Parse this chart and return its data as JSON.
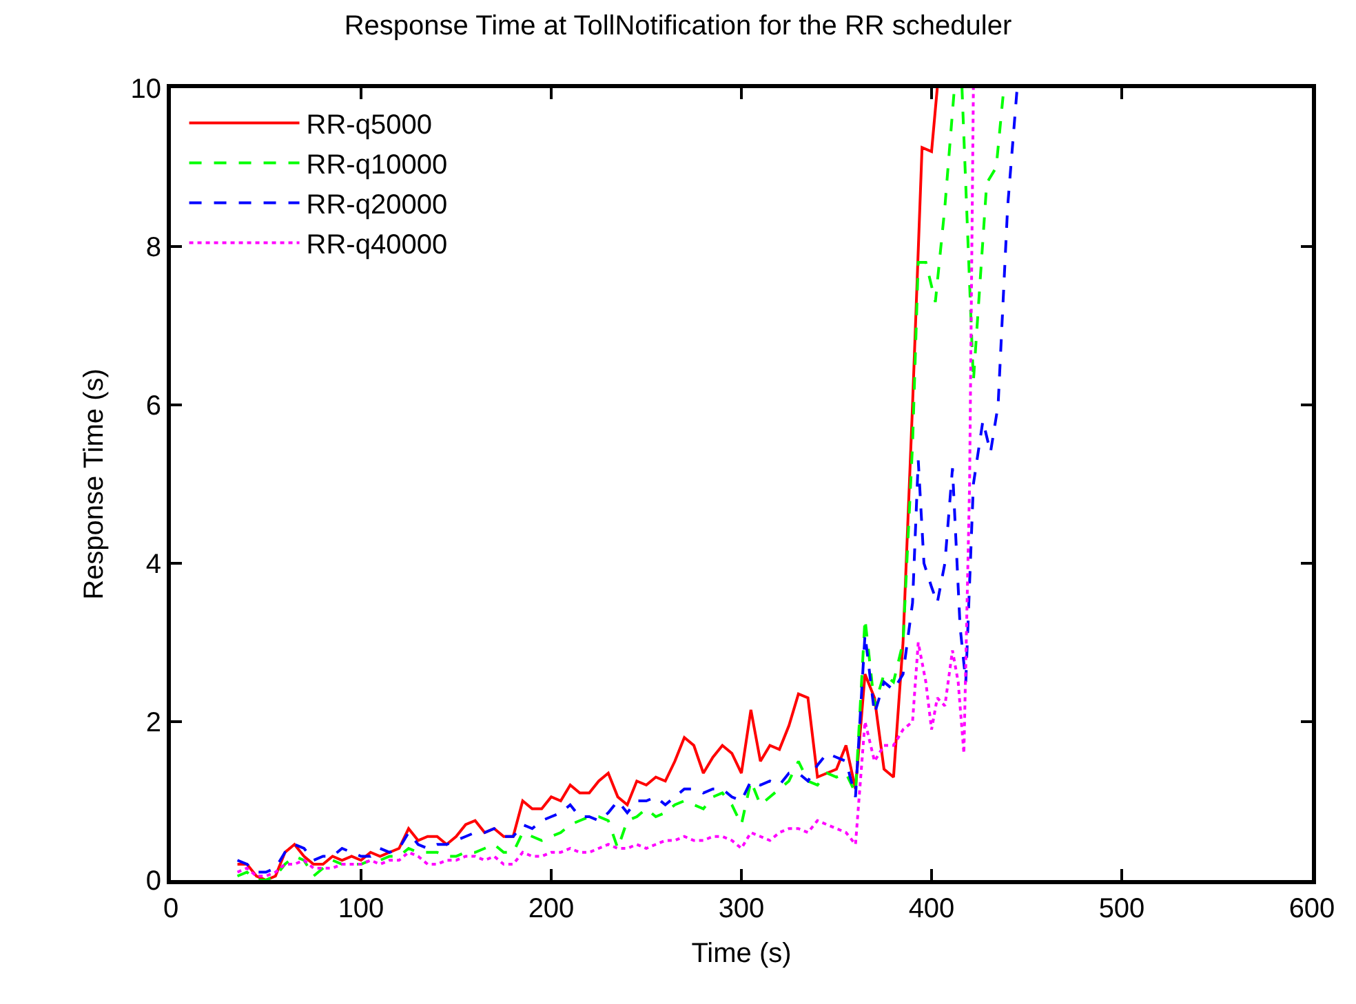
{
  "chart_data": {
    "type": "line",
    "title": "Response Time at TollNotification for the RR scheduler",
    "xlabel": "Time (s)",
    "ylabel": "Response Time (s)",
    "xlim": [
      0,
      600
    ],
    "ylim": [
      0,
      10
    ],
    "xticks": [
      0,
      100,
      200,
      300,
      400,
      500,
      600
    ],
    "yticks": [
      0,
      2,
      4,
      6,
      8,
      10
    ],
    "legend": "top left",
    "marker": "none",
    "series": [
      {
        "name": "RR-q5000",
        "color": "#ff0000",
        "line_style": "solid",
        "x": [
          35,
          40,
          45,
          50,
          55,
          60,
          65,
          70,
          75,
          80,
          85,
          90,
          95,
          100,
          105,
          110,
          115,
          120,
          125,
          130,
          135,
          140,
          145,
          150,
          155,
          160,
          165,
          170,
          175,
          180,
          185,
          190,
          195,
          200,
          205,
          210,
          215,
          220,
          225,
          230,
          235,
          240,
          245,
          250,
          255,
          260,
          265,
          270,
          275,
          280,
          285,
          290,
          295,
          300,
          305,
          310,
          315,
          320,
          325,
          330,
          335,
          340,
          345,
          350,
          355,
          360,
          365,
          370,
          375,
          380,
          385,
          390,
          395,
          400,
          403
        ],
        "values": [
          0.2,
          0.2,
          0.05,
          0.0,
          0.05,
          0.35,
          0.45,
          0.3,
          0.2,
          0.2,
          0.3,
          0.25,
          0.3,
          0.25,
          0.35,
          0.3,
          0.35,
          0.4,
          0.65,
          0.5,
          0.55,
          0.55,
          0.45,
          0.55,
          0.7,
          0.75,
          0.6,
          0.65,
          0.55,
          0.55,
          1.0,
          0.9,
          0.9,
          1.05,
          1.0,
          1.2,
          1.1,
          1.1,
          1.25,
          1.35,
          1.05,
          0.95,
          1.25,
          1.2,
          1.3,
          1.25,
          1.5,
          1.8,
          1.7,
          1.35,
          1.55,
          1.7,
          1.6,
          1.35,
          2.15,
          1.5,
          1.7,
          1.65,
          1.95,
          2.35,
          2.3,
          1.3,
          1.35,
          1.4,
          1.7,
          1.15,
          2.6,
          2.3,
          1.4,
          1.3,
          3.0,
          6.0,
          9.25,
          9.2,
          10.0
        ]
      },
      {
        "name": "RR-q10000",
        "color": "#00ff00",
        "line_style": "dashed",
        "x": [
          35,
          40,
          45,
          50,
          55,
          60,
          65,
          70,
          75,
          80,
          85,
          90,
          95,
          100,
          105,
          110,
          115,
          120,
          125,
          130,
          135,
          140,
          145,
          150,
          155,
          160,
          165,
          170,
          175,
          180,
          185,
          190,
          195,
          200,
          205,
          210,
          215,
          220,
          225,
          230,
          235,
          240,
          245,
          250,
          255,
          260,
          265,
          270,
          275,
          280,
          285,
          290,
          295,
          300,
          305,
          310,
          315,
          320,
          325,
          330,
          335,
          340,
          345,
          350,
          355,
          360,
          365,
          370,
          375,
          380,
          385,
          390,
          393,
          397,
          402,
          407,
          412,
          416,
          422,
          429,
          434,
          438
        ],
        "values": [
          0.05,
          0.1,
          0.0,
          0.0,
          0.05,
          0.2,
          0.3,
          0.25,
          0.05,
          0.15,
          0.25,
          0.2,
          0.2,
          0.2,
          0.25,
          0.25,
          0.3,
          0.3,
          0.4,
          0.35,
          0.35,
          0.35,
          0.3,
          0.3,
          0.35,
          0.35,
          0.4,
          0.45,
          0.35,
          0.35,
          0.6,
          0.55,
          0.5,
          0.55,
          0.6,
          0.7,
          0.75,
          0.8,
          0.8,
          0.75,
          0.4,
          0.75,
          0.8,
          0.9,
          0.8,
          0.85,
          0.95,
          1.0,
          0.95,
          0.9,
          1.05,
          1.1,
          0.95,
          0.7,
          1.25,
          0.95,
          1.05,
          1.15,
          1.25,
          1.5,
          1.25,
          1.2,
          1.35,
          1.3,
          1.35,
          1.1,
          3.3,
          2.2,
          2.6,
          2.5,
          3.0,
          5.5,
          7.8,
          7.8,
          7.3,
          8.5,
          10.0,
          10.0,
          6.3,
          8.8,
          9.0,
          10.0
        ]
      },
      {
        "name": "RR-q20000",
        "color": "#0000ff",
        "line_style": "dashed",
        "x": [
          35,
          40,
          45,
          50,
          55,
          60,
          65,
          70,
          75,
          80,
          85,
          90,
          95,
          100,
          105,
          110,
          115,
          120,
          125,
          130,
          135,
          140,
          145,
          150,
          155,
          160,
          165,
          170,
          175,
          180,
          185,
          190,
          195,
          200,
          205,
          210,
          215,
          220,
          225,
          230,
          235,
          240,
          245,
          250,
          255,
          260,
          265,
          270,
          275,
          280,
          285,
          290,
          295,
          300,
          305,
          310,
          315,
          320,
          325,
          330,
          335,
          340,
          345,
          350,
          355,
          360,
          365,
          370,
          375,
          380,
          385,
          390,
          393,
          396,
          400,
          403,
          407,
          411,
          415,
          418,
          422,
          427,
          431,
          435,
          440,
          445
        ],
        "values": [
          0.25,
          0.2,
          0.1,
          0.1,
          0.15,
          0.35,
          0.45,
          0.4,
          0.25,
          0.3,
          0.3,
          0.4,
          0.35,
          0.3,
          0.3,
          0.4,
          0.35,
          0.4,
          0.6,
          0.45,
          0.4,
          0.45,
          0.45,
          0.5,
          0.55,
          0.6,
          0.6,
          0.65,
          0.55,
          0.55,
          0.7,
          0.65,
          0.75,
          0.8,
          0.85,
          0.95,
          0.8,
          0.8,
          0.75,
          0.85,
          1.0,
          0.85,
          1.0,
          1.0,
          1.05,
          0.95,
          1.05,
          1.15,
          1.15,
          1.1,
          1.15,
          1.15,
          1.05,
          1.0,
          1.25,
          1.2,
          1.25,
          1.2,
          1.35,
          1.35,
          1.25,
          1.45,
          1.6,
          1.55,
          1.5,
          1.05,
          3.1,
          2.1,
          2.5,
          2.4,
          2.6,
          3.5,
          5.3,
          4.0,
          3.7,
          3.5,
          4.0,
          5.2,
          3.2,
          2.5,
          5.0,
          5.8,
          5.4,
          6.0,
          8.5,
          10.0
        ]
      },
      {
        "name": "RR-q40000",
        "color": "#ff00ff",
        "line_style": "dotted",
        "x": [
          35,
          40,
          45,
          50,
          55,
          60,
          65,
          70,
          75,
          80,
          85,
          90,
          95,
          100,
          105,
          110,
          115,
          120,
          125,
          130,
          135,
          140,
          145,
          150,
          155,
          160,
          165,
          170,
          175,
          180,
          185,
          190,
          195,
          200,
          205,
          210,
          215,
          220,
          225,
          230,
          235,
          240,
          245,
          250,
          255,
          260,
          265,
          270,
          275,
          280,
          285,
          290,
          295,
          300,
          305,
          310,
          315,
          320,
          325,
          330,
          335,
          340,
          345,
          350,
          355,
          360,
          365,
          370,
          375,
          380,
          385,
          390,
          393,
          397,
          400,
          403,
          407,
          411,
          414,
          417,
          420,
          422
        ],
        "values": [
          0.1,
          0.15,
          0.05,
          0.05,
          0.1,
          0.2,
          0.2,
          0.25,
          0.15,
          0.15,
          0.15,
          0.2,
          0.2,
          0.2,
          0.25,
          0.2,
          0.25,
          0.25,
          0.35,
          0.3,
          0.2,
          0.2,
          0.25,
          0.25,
          0.3,
          0.3,
          0.25,
          0.3,
          0.2,
          0.2,
          0.35,
          0.3,
          0.3,
          0.35,
          0.35,
          0.4,
          0.35,
          0.35,
          0.4,
          0.45,
          0.4,
          0.4,
          0.45,
          0.4,
          0.45,
          0.5,
          0.5,
          0.55,
          0.5,
          0.5,
          0.55,
          0.55,
          0.5,
          0.4,
          0.6,
          0.55,
          0.5,
          0.6,
          0.65,
          0.65,
          0.6,
          0.75,
          0.7,
          0.65,
          0.6,
          0.45,
          2.0,
          1.5,
          1.7,
          1.7,
          1.9,
          2.0,
          3.0,
          2.5,
          1.9,
          2.3,
          2.2,
          2.9,
          2.5,
          1.6,
          5.0,
          10.0
        ]
      }
    ]
  }
}
